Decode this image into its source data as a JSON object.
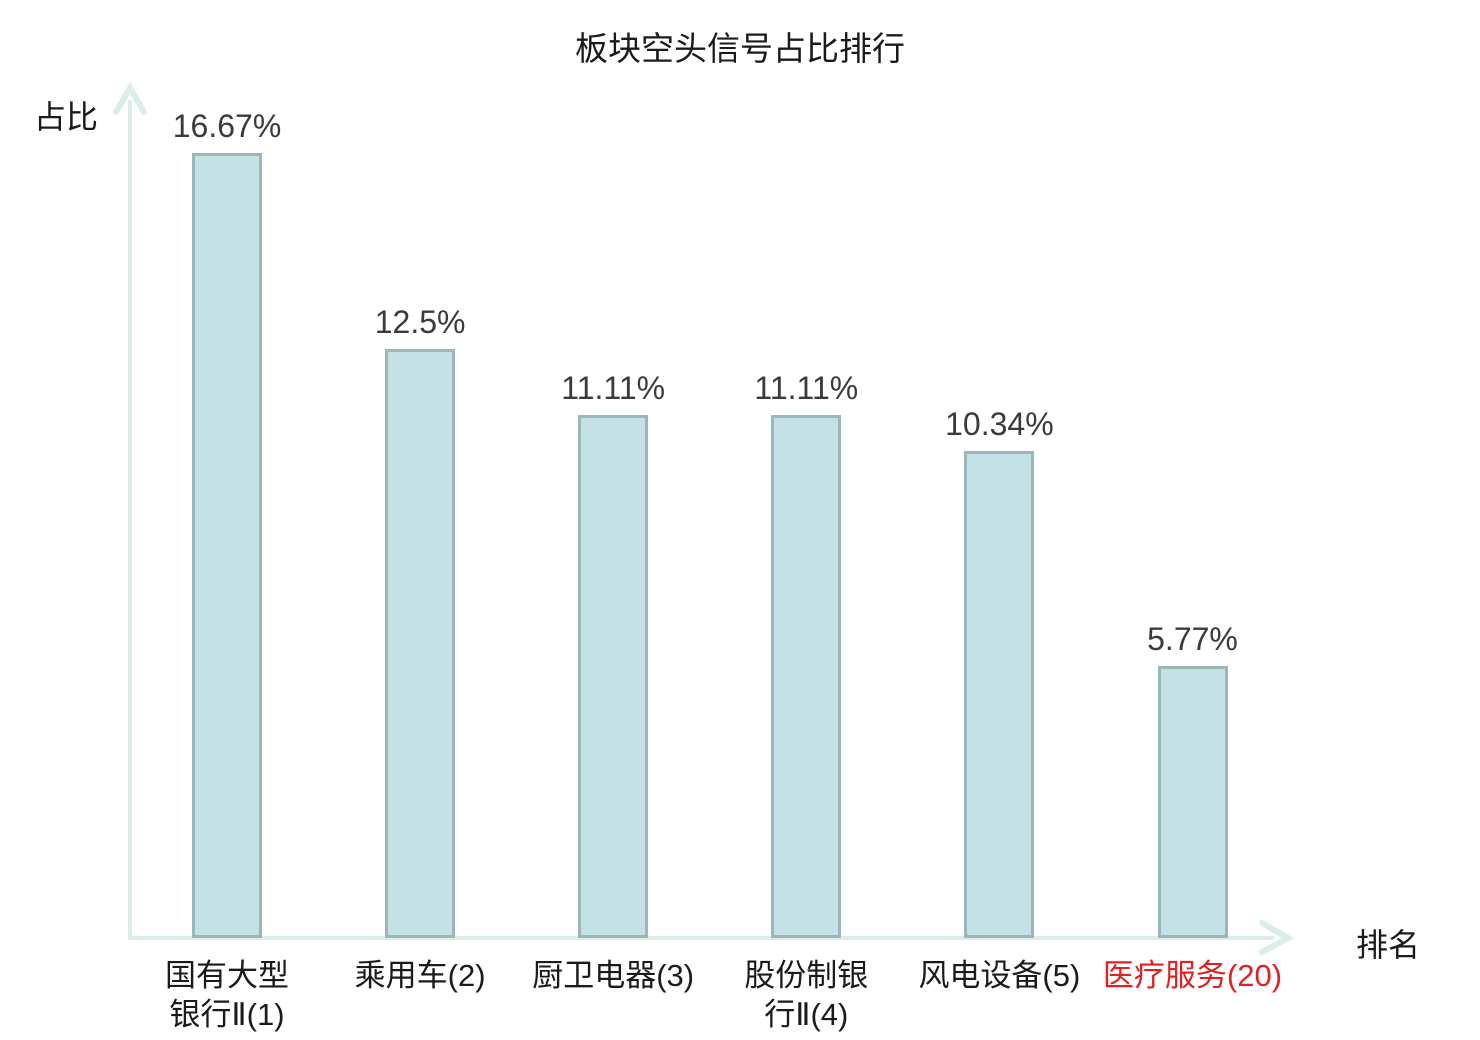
{
  "chart_data": {
    "type": "bar",
    "title": "板块空头信号占比排行",
    "xlabel": "排名",
    "ylabel": "占比",
    "unit": "%",
    "categories": [
      "国有大型银行Ⅱ(1)",
      "乘用车(2)",
      "厨卫电器(3)",
      "股份制银行Ⅱ(4)",
      "风电设备(5)",
      "医疗服务(20)"
    ],
    "ranks": [
      1,
      2,
      3,
      4,
      5,
      20
    ],
    "values": [
      16.67,
      12.5,
      11.11,
      11.11,
      10.34,
      5.77
    ],
    "value_labels": [
      "16.67%",
      "12.5%",
      "11.11%",
      "11.11%",
      "10.34%",
      "5.77%"
    ],
    "category_display_lines": [
      [
        "国有大型",
        "银行Ⅱ(1)"
      ],
      [
        "乘用车(2)"
      ],
      [
        "厨卫电器(3)"
      ],
      [
        "股份制银",
        "行Ⅱ(4)"
      ],
      [
        "风电设备(5)"
      ],
      [
        "医疗服务(20)"
      ]
    ],
    "category_colors": [
      "#1a1a1a",
      "#1a1a1a",
      "#1a1a1a",
      "#1a1a1a",
      "#1a1a1a",
      "#e02121"
    ],
    "value_label_color": "#3a3a3a",
    "title_color": "#1a1a1a",
    "bar_fill_color": "#c4e1e5",
    "bar_border_color": "#9cb6ba",
    "axis_color": "#daedea",
    "ylim": [
      0,
      17.8
    ],
    "grid": false,
    "legend": false
  }
}
